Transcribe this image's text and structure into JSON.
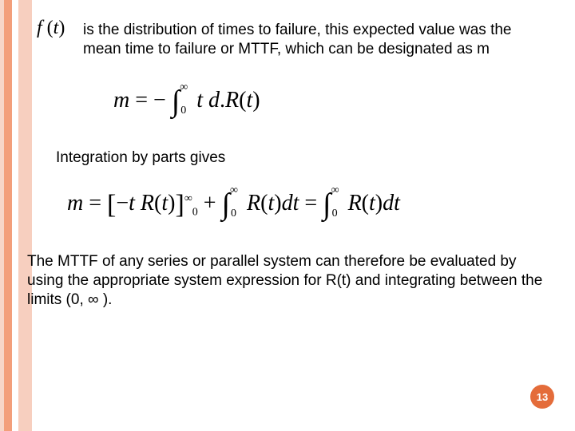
{
  "colors": {
    "stripe1": "#f7d6c8",
    "stripe2": "#f39f7b",
    "stripe3": "#ffffff",
    "stripe4": "#f7cfbf",
    "text": "#000000",
    "pagenum_bg": "#e46c3a",
    "pagenum_text": "#ffffff",
    "background": "#ffffff"
  },
  "typography": {
    "body_font": "Arial",
    "body_size_pt": 14,
    "math_font": "Times New Roman",
    "math_size_pt": 21
  },
  "header_expr": "f (t)",
  "para1": "is the distribution of times to failure, this expected value was the mean time to failure or MTTF, which can be designated as m",
  "equation1": {
    "lhs": "m",
    "rhs_prefix": "−",
    "integral_lower": "0",
    "integral_upper": "∞",
    "integrand": "t d.R(t)"
  },
  "para2": "Integration by parts gives",
  "equation2": {
    "lhs": "m",
    "term1_inner": "−t R(t)",
    "term1_lower": "0",
    "term1_upper": "∞",
    "plus": "+",
    "term2_integral_lower": "0",
    "term2_integral_upper": "∞",
    "term2_integrand": "R(t)dt",
    "eq": "=",
    "term3_integral_lower": "0",
    "term3_integral_upper": "∞",
    "term3_integrand": "R(t)dt"
  },
  "para3": "The MTTF of any series or parallel system can therefore be evaluated by using the appropriate system expression for R(t) and integrating between the limits (0, ∞ ).",
  "page_number": "13"
}
